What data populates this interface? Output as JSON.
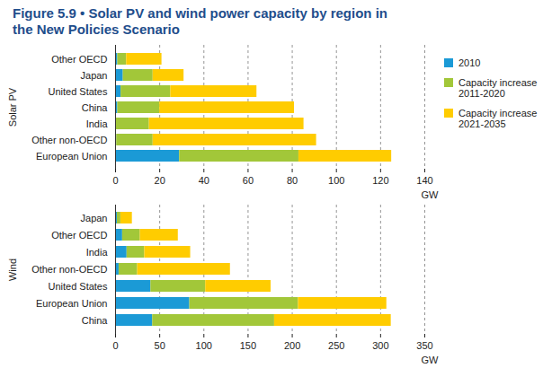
{
  "chart_data": [
    {
      "type": "bar",
      "orientation": "horizontal",
      "stacked": true,
      "grid": true,
      "legend": "right",
      "title": "Figure 5.9 • Solar PV and wind power capacity by region in the New Policies Scenario",
      "ylabel": "Solar PV",
      "xlabel": "GW",
      "categories": [
        "Other OECD",
        "Japan",
        "United States",
        "China",
        "India",
        "Other non-OECD",
        "European Union"
      ],
      "xlim": [
        0,
        140
      ],
      "xticks": [
        0,
        20,
        40,
        60,
        80,
        100,
        120,
        140
      ],
      "series": [
        {
          "name": "2010",
          "color": "#1b9ad6",
          "values": [
            1,
            3.5,
            2.5,
            1,
            0.3,
            0.5,
            29
          ]
        },
        {
          "name": "Capacity increase 2011-2020",
          "color": "#a2c739",
          "values": [
            4,
            13.5,
            22.5,
            19,
            15,
            16.5,
            54
          ]
        },
        {
          "name": "Capacity increase 2021-2035",
          "color": "#ffcc00",
          "values": [
            16,
            14,
            39,
            61,
            70,
            74,
            42
          ]
        }
      ]
    },
    {
      "type": "bar",
      "orientation": "horizontal",
      "stacked": true,
      "grid": true,
      "ylabel": "Wind",
      "xlabel": "GW",
      "categories": [
        "Japan",
        "Other OECD",
        "India",
        "Other non-OECD",
        "United States",
        "European Union",
        "China"
      ],
      "xlim": [
        0,
        350
      ],
      "xticks": [
        0,
        50,
        100,
        150,
        200,
        250,
        300,
        350
      ],
      "series": [
        {
          "name": "2010",
          "color": "#1b9ad6",
          "values": [
            2,
            8,
            13,
            4,
            40,
            84,
            42
          ]
        },
        {
          "name": "Capacity increase 2011-2020",
          "color": "#a2c739",
          "values": [
            4,
            20,
            20,
            21,
            62,
            123,
            138
          ]
        },
        {
          "name": "Capacity increase 2021-2035",
          "color": "#ffcc00",
          "values": [
            13,
            43,
            52,
            105,
            74,
            100,
            132
          ]
        }
      ]
    }
  ]
}
